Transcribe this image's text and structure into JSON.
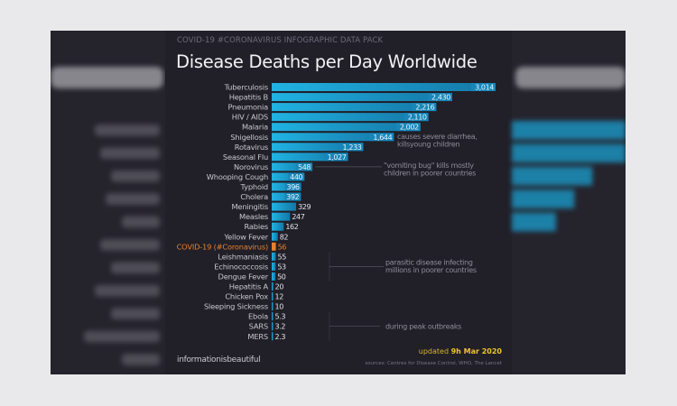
{
  "header": {
    "kicker": "COVID-19 #CORONAVIRUS INFOGRAPHIC DATA PACK",
    "title": "Disease Deaths per Day Worldwide"
  },
  "footer": {
    "brand": "informationisbeautiful",
    "updated_prefix": "updated",
    "updated_date": "9h Mar 2020",
    "sources": "sources: Centres for Disease Control, WHO, The Lancet"
  },
  "colors": {
    "bar": "#1a9fd0",
    "bar_dark": "#1477a6",
    "highlight": "#e8812c",
    "label": "#c8c7ce",
    "panel": "#211f28"
  },
  "chart_data": {
    "type": "bar",
    "orientation": "horizontal",
    "title": "Disease Deaths per Day Worldwide",
    "categories": [
      "Tuberculosis",
      "Hepatitis B",
      "Pneumonia",
      "HIV / AIDS",
      "Malaria",
      "Shigellosis",
      "Rotavirus",
      "Seasonal Flu",
      "Norovirus",
      "Whooping Cough",
      "Typhoid",
      "Cholera",
      "Meningitis",
      "Measles",
      "Rabies",
      "Yellow Fever",
      "COVID-19 (#Coronavirus)",
      "Leishmaniasis",
      "Echinococcosis",
      "Dengue Fever",
      "Hepatitis A",
      "Chicken Pox",
      "Sleeping Sickness",
      "Ebola",
      "SARS",
      "MERS"
    ],
    "values": [
      3014,
      2430,
      2216,
      2110,
      2002,
      1644,
      1233,
      1027,
      548,
      440,
      396,
      392,
      329,
      247,
      162,
      82,
      56,
      55,
      53,
      50,
      20,
      12,
      10,
      5.3,
      3.2,
      2.3
    ],
    "value_labels": [
      "3,014",
      "2,430",
      "2,216",
      "2,110",
      "2,002",
      "1,644",
      "1,233",
      "1,027",
      "548",
      "440",
      "396",
      "392",
      "329",
      "247",
      "162",
      "82",
      "56",
      "55",
      "53",
      "50",
      "20",
      "12",
      "10",
      "5.3",
      "3.2",
      "2.3"
    ],
    "highlight": "COVID-19 (#Coronavirus)",
    "annotations": [
      {
        "target": "Shigellosis",
        "text": [
          "causes severe diarrhea,",
          "killsyoung children"
        ]
      },
      {
        "target": "Norovirus",
        "text": [
          "\"vomiting bug\" kills mostly",
          "children in poorer countries"
        ]
      },
      {
        "target": [
          "Leishmaniasis",
          "Echinococcosis",
          "Dengue Fever"
        ],
        "text": [
          "parasitic disease infecting",
          "millions in poorer countries"
        ]
      },
      {
        "target": [
          "Ebola",
          "SARS",
          "MERS"
        ],
        "text": [
          "during peak outbreaks"
        ]
      }
    ],
    "xlim": [
      0,
      3014
    ],
    "grid": false,
    "legend": "none"
  }
}
